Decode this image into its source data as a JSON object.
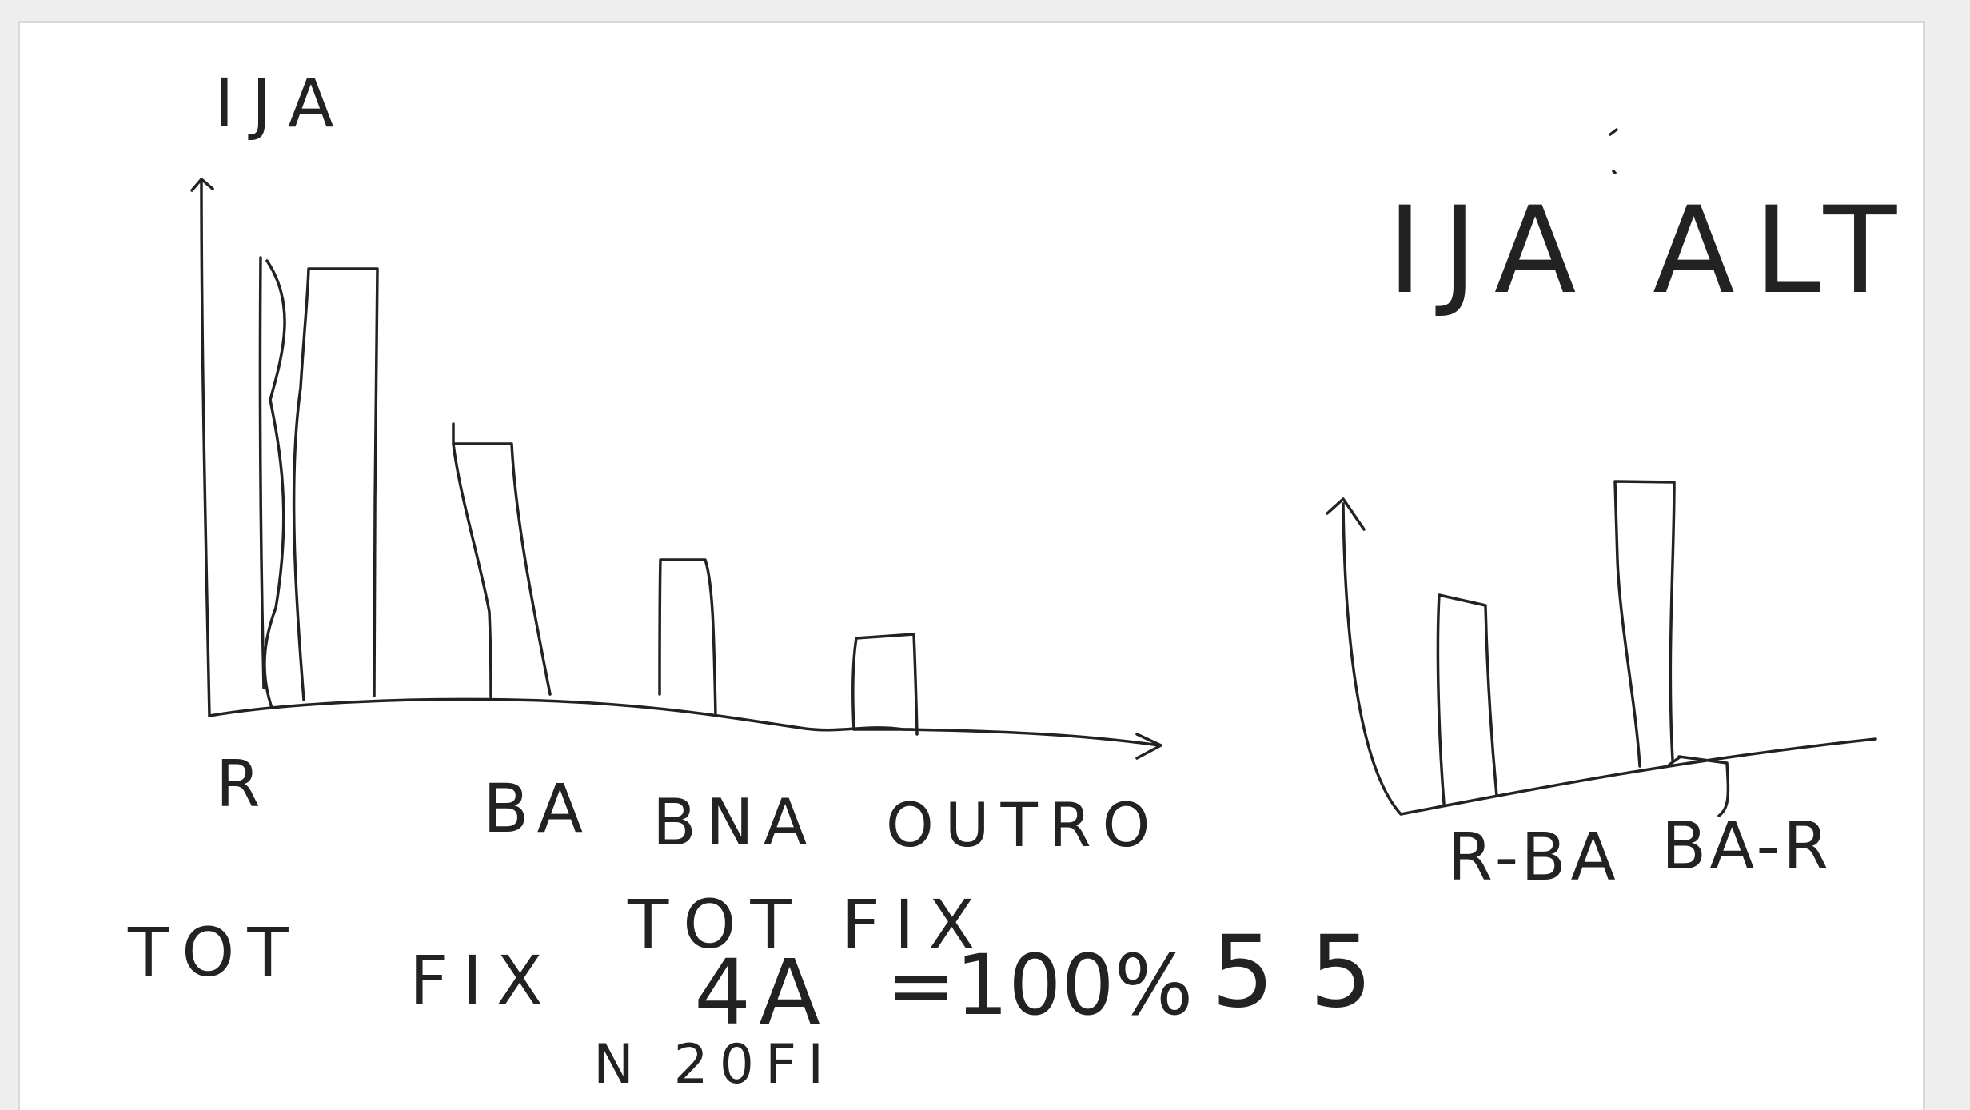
{
  "left_chart": {
    "title": "IJA",
    "categories": [
      "R",
      "BA",
      "BNA",
      "OUTRO"
    ]
  },
  "right_chart": {
    "title": "IJA ALT",
    "categories": [
      "R-BA",
      "BA-R"
    ]
  },
  "notes": {
    "tot": "TOT",
    "fix": "FIX",
    "tot_fix": "TOT FIX",
    "value": "4A",
    "equals_percent": "=100%",
    "n20": "N 20FI",
    "fifty_five": "55"
  },
  "colors": {
    "ink": "#222222",
    "page": "#ffffff",
    "frame": "#eeeeee"
  }
}
